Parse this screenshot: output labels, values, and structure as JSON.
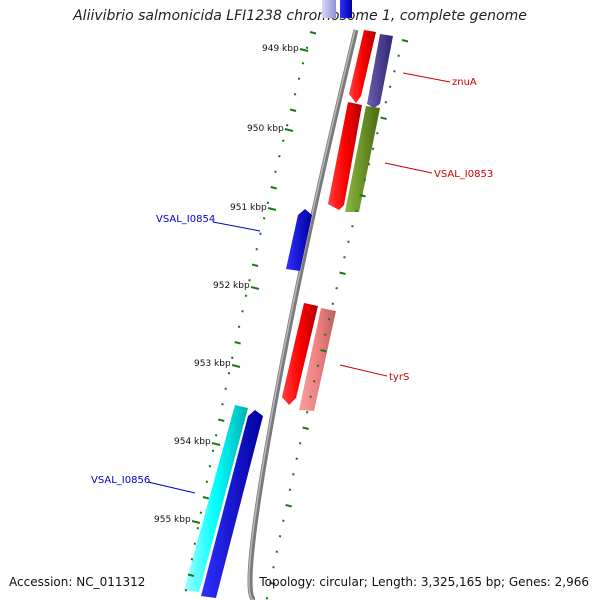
{
  "title": "Aliivibrio salmonicida LFI1238 chromosome 1, complete genome",
  "accession": "Accession: NC_011312",
  "topology": "Topology: circular; Length: 3,325,165 bp; Genes: 2,966",
  "ticks": [
    {
      "label": "949 kbp"
    },
    {
      "label": "950 kbp"
    },
    {
      "label": "951 kbp"
    },
    {
      "label": "952 kbp"
    },
    {
      "label": "953 kbp"
    },
    {
      "label": "954 kbp"
    },
    {
      "label": "955 kbp"
    }
  ],
  "gene_labels": [
    {
      "label": "znuA",
      "color": "#cc0000"
    },
    {
      "label": "VSAL_I0853",
      "color": "#cc0000"
    },
    {
      "label": "VSAL_I0854",
      "color": "#0000cc"
    },
    {
      "label": "tyrS",
      "color": "#cc0000"
    },
    {
      "label": "VSAL_I0856",
      "color": "#0000cc"
    }
  ],
  "colors": {
    "backbone": "#7a7a7a",
    "tick": "#1a7a1a",
    "red": "#ff0000",
    "pink": "#f08080",
    "purple": "#4a3f8c",
    "olive": "#6b8e23",
    "blue": "#0000e0",
    "cyan": "#00ffff"
  }
}
